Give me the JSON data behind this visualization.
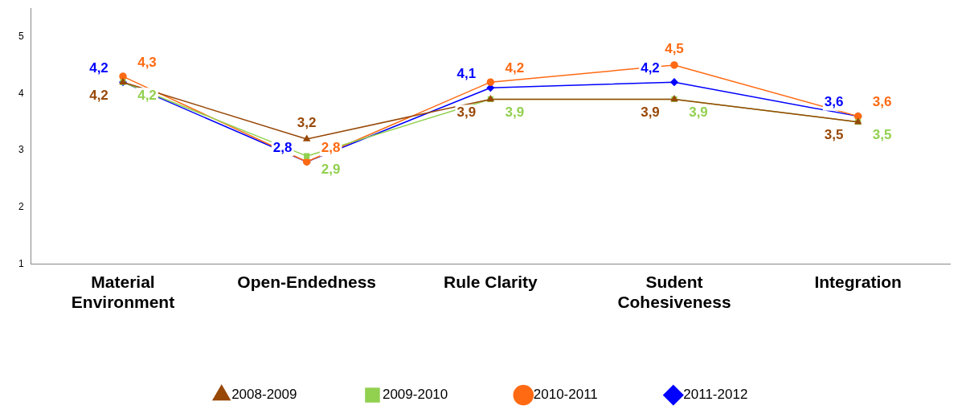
{
  "chart_data": {
    "type": "line",
    "categories": [
      "Material Environment",
      "Open-Endedness",
      "Rule Clarity",
      "Sudent Cohesiveness",
      "Integration"
    ],
    "series": [
      {
        "name": "2008-2009",
        "color": "#984807",
        "marker": "triangle",
        "values": [
          4.2,
          3.2,
          3.9,
          3.9,
          3.5
        ],
        "value_labels": [
          "4,2",
          "3,2",
          "3,9",
          "3,9",
          "3,5"
        ]
      },
      {
        "name": "2009-2010",
        "color": "#92d050",
        "marker": "square",
        "values": [
          4.2,
          2.9,
          3.9,
          3.9,
          3.5
        ],
        "value_labels": [
          "4,2",
          "2,9",
          "3,9",
          "3,9",
          "3,5"
        ]
      },
      {
        "name": "2010-2011",
        "color": "#ff6a13",
        "marker": "circle",
        "values": [
          4.3,
          2.8,
          4.2,
          4.5,
          3.6
        ],
        "value_labels": [
          "4,3",
          "2,8",
          "4,2",
          "4,5",
          "3,6"
        ]
      },
      {
        "name": "2011-2012",
        "color": "#0000ff",
        "marker": "diamond",
        "values": [
          4.2,
          2.8,
          4.1,
          4.2,
          3.6
        ],
        "value_labels": [
          "4,2",
          "2,8",
          "4,1",
          "4,2",
          "3,6"
        ]
      }
    ],
    "ylim": [
      1,
      5.5
    ],
    "yticks": [
      1,
      2,
      3,
      4,
      5
    ],
    "grid": false,
    "legend": "bottom",
    "line_style": "solid"
  }
}
